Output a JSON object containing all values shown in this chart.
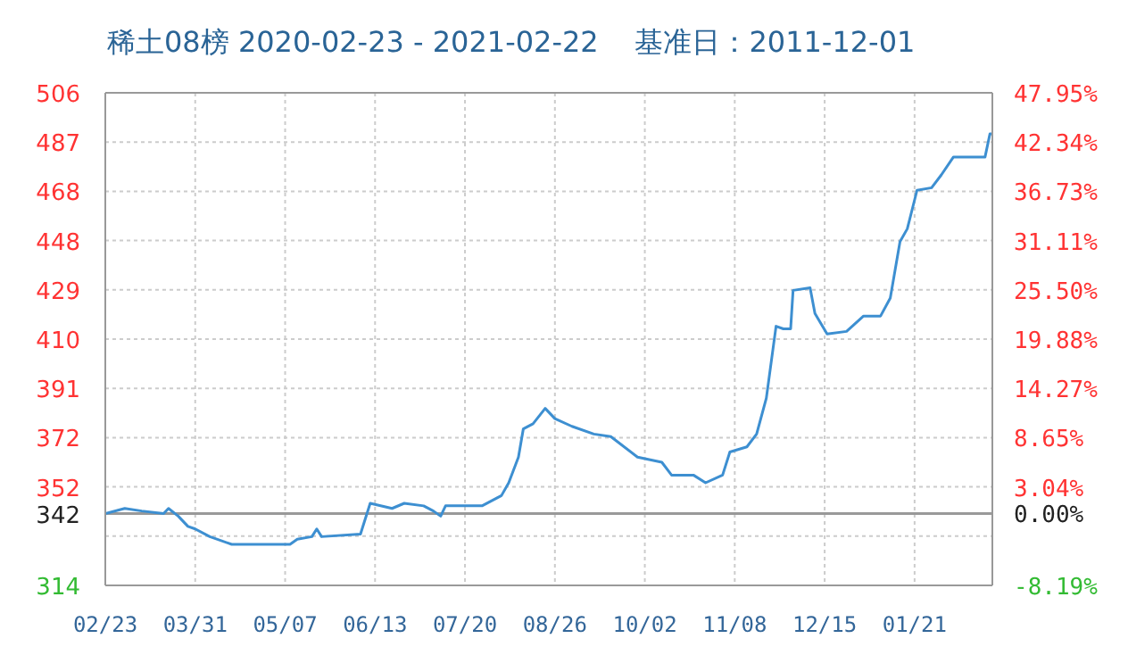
{
  "chart_data": {
    "type": "line",
    "title": "稀土08榜 2020-02-23 - 2021-02-22    基准日：2011-12-01",
    "x": [
      "2020-02-23",
      "2020-03-02",
      "2020-03-09",
      "2020-03-18",
      "2020-03-20",
      "2020-03-24",
      "2020-03-28",
      "2020-03-31",
      "2020-04-06",
      "2020-04-15",
      "2020-05-09",
      "2020-05-12",
      "2020-05-18",
      "2020-05-20",
      "2020-05-22",
      "2020-06-07",
      "2020-06-11",
      "2020-06-20",
      "2020-06-25",
      "2020-07-03",
      "2020-07-07",
      "2020-07-10",
      "2020-07-12",
      "2020-07-27",
      "2020-08-04",
      "2020-08-07",
      "2020-08-11",
      "2020-08-13",
      "2020-08-17",
      "2020-08-22",
      "2020-08-26",
      "2020-09-02",
      "2020-09-11",
      "2020-09-18",
      "2020-09-29",
      "2020-10-09",
      "2020-10-13",
      "2020-10-22",
      "2020-10-27",
      "2020-11-03",
      "2020-11-06",
      "2020-11-13",
      "2020-11-17",
      "2020-11-21",
      "2020-11-25",
      "2020-11-28",
      "2020-12-01",
      "2020-12-02",
      "2020-12-09",
      "2020-12-11",
      "2020-12-16",
      "2020-12-24",
      "2020-12-31",
      "2021-01-07",
      "2021-01-11",
      "2021-01-15",
      "2021-01-18",
      "2021-01-22",
      "2021-01-28",
      "2021-02-01",
      "2021-02-06",
      "2021-02-19",
      "2021-02-21",
      "2021-02-22"
    ],
    "series": [
      {
        "color": "#3d8fd1",
        "values": [
          342,
          344,
          343,
          342,
          344,
          341,
          337,
          336,
          333,
          330,
          330,
          332,
          333,
          336,
          333,
          334,
          346,
          344,
          346,
          345,
          343,
          341,
          345,
          345,
          349,
          354,
          364,
          375,
          377,
          383,
          379,
          376,
          373,
          372,
          364,
          362,
          357,
          357,
          354,
          357,
          366,
          368,
          373,
          387,
          415,
          414,
          414,
          429,
          430,
          420,
          412,
          413,
          419,
          419,
          426,
          448,
          453,
          468,
          469,
          474,
          481,
          481,
          490,
          490
        ]
      }
    ],
    "xlim": [
      "2020-02-23",
      "2021-02-22"
    ],
    "xticks": [
      {
        "value": "2020-02-23",
        "label": "02/23"
      },
      {
        "value": "2020-03-31",
        "label": "03/31"
      },
      {
        "value": "2020-05-07",
        "label": "05/07"
      },
      {
        "value": "2020-06-13",
        "label": "06/13"
      },
      {
        "value": "2020-07-20",
        "label": "07/20"
      },
      {
        "value": "2020-08-26",
        "label": "08/26"
      },
      {
        "value": "2020-10-02",
        "label": "10/02"
      },
      {
        "value": "2020-11-08",
        "label": "11/08"
      },
      {
        "value": "2020-12-15",
        "label": "12/15"
      },
      {
        "value": "2021-01-21",
        "label": "01/21"
      }
    ],
    "ylim": [
      314,
      506
    ],
    "yticks": [
      314,
      {
        "value": 333.2,
        "label": null
      },
      342,
      {
        "value": 352.4,
        "label": "352"
      },
      {
        "value": 371.6,
        "label": "372"
      },
      {
        "value": 390.8,
        "label": "391"
      },
      410,
      {
        "value": 429.2,
        "label": "429"
      },
      {
        "value": 448.4,
        "label": "448"
      },
      {
        "value": 467.6,
        "label": "468"
      },
      {
        "value": 486.8,
        "label": "487"
      },
      506
    ],
    "y2lim": [
      -8.19,
      47.95
    ],
    "y2ticks": [
      {
        "value": -8.19,
        "label": "-8.19%"
      },
      {
        "value": 0,
        "label": "0.00%"
      },
      {
        "value": 3.04,
        "label": "3.04%"
      },
      {
        "value": 8.65,
        "label": "8.65%"
      },
      {
        "value": 14.27,
        "label": "14.27%"
      },
      {
        "value": 19.88,
        "label": "19.88%"
      },
      {
        "value": 25.5,
        "label": "25.50%"
      },
      {
        "value": 31.11,
        "label": "31.11%"
      },
      {
        "value": 36.73,
        "label": "36.73%"
      },
      {
        "value": 42.34,
        "label": "42.34%"
      },
      {
        "value": 47.95,
        "label": "47.95%"
      }
    ],
    "ref_lines": [
      {
        "axis": "y",
        "value": 342,
        "color": "#999999"
      }
    ],
    "grid": true,
    "marker": "none",
    "line_style": "solid"
  }
}
